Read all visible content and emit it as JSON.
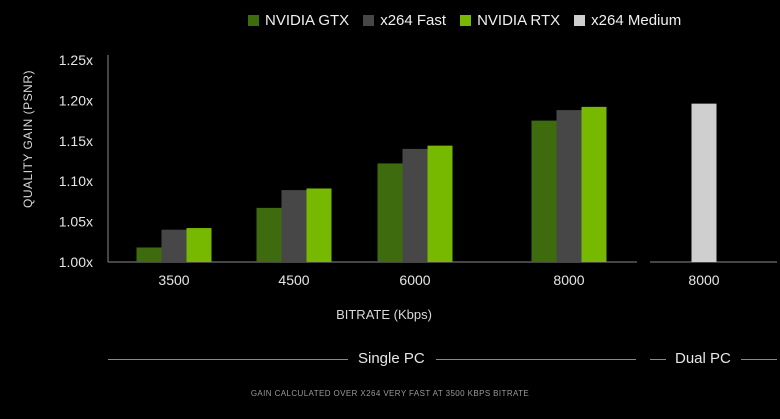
{
  "chart_data": {
    "type": "bar",
    "title": "",
    "ylabel": "QUALITY GAIN (PSNR)",
    "xlabel": "BITRATE (Kbps)",
    "ylim": [
      1.0,
      1.25
    ],
    "yticks": [
      "1.00x",
      "1.05x",
      "1.10x",
      "1.15x",
      "1.20x",
      "1.25x"
    ],
    "ytick_values": [
      1.0,
      1.05,
      1.1,
      1.15,
      1.2,
      1.25
    ],
    "legend": [
      {
        "name": "NVIDIA GTX",
        "color": "#3f6b0f"
      },
      {
        "name": "x264 Fast",
        "color": "#474747"
      },
      {
        "name": "NVIDIA RTX",
        "color": "#76b900"
      },
      {
        "name": "x264 Medium",
        "color": "#cfcfcf"
      }
    ],
    "groups": [
      {
        "label": "Single PC",
        "categories": [
          "3500",
          "4500",
          "6000",
          "8000"
        ],
        "series": [
          {
            "name": "NVIDIA GTX",
            "values": [
              1.018,
              1.067,
              1.122,
              1.175
            ]
          },
          {
            "name": "x264 Fast",
            "values": [
              1.04,
              1.089,
              1.14,
              1.188
            ]
          },
          {
            "name": "NVIDIA RTX",
            "values": [
              1.042,
              1.091,
              1.144,
              1.192
            ]
          }
        ]
      },
      {
        "label": "Dual PC",
        "categories": [
          "8000"
        ],
        "series": [
          {
            "name": "x264 Medium",
            "values": [
              1.196
            ]
          }
        ]
      }
    ],
    "footnote": "GAIN CALCULATED OVER X264 VERY FAST AT 3500 KBPS BITRATE"
  }
}
